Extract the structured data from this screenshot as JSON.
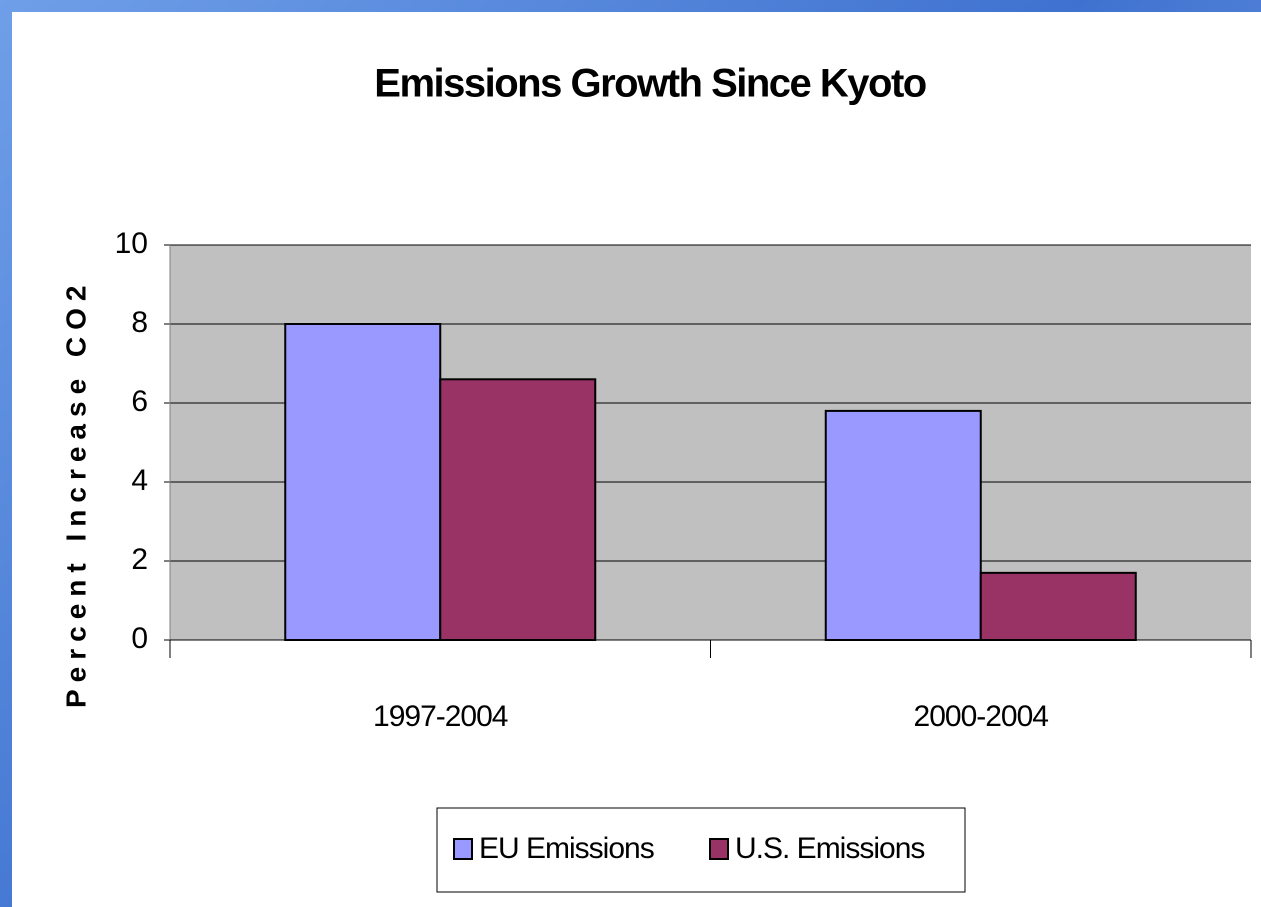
{
  "chart_data": {
    "type": "bar",
    "title": "Emissions Growth Since Kyoto",
    "y_label": "Percent Increase CO2",
    "categories": [
      "1997-2004",
      "2000-2004"
    ],
    "series": [
      {
        "name": "EU Emissions",
        "color": "#9999ff",
        "values": [
          8,
          5.8
        ]
      },
      {
        "name": "U.S. Emissions",
        "color": "#993366",
        "values": [
          6.6,
          1.7
        ]
      }
    ],
    "ylim": [
      0,
      10
    ],
    "yticks": [
      0,
      2,
      4,
      6,
      8,
      10
    ],
    "grid": true,
    "legend": "bottom"
  }
}
